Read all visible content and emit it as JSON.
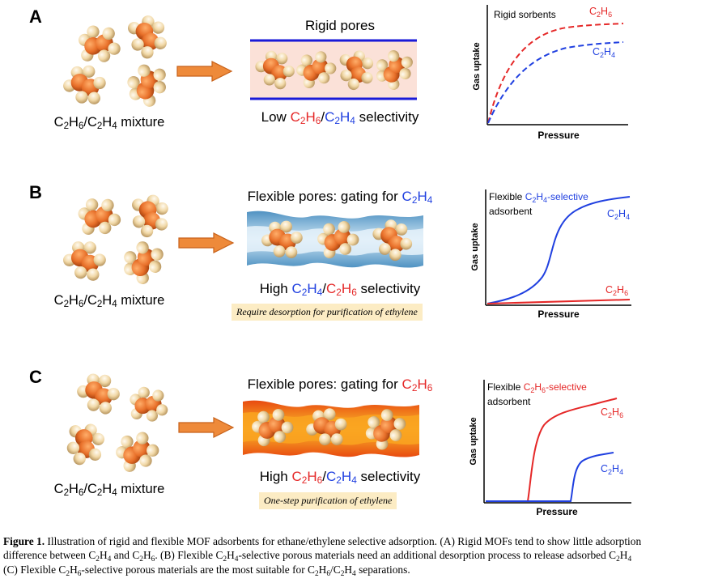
{
  "panels": [
    {
      "label": "A",
      "mixture": {
        "a": "C",
        "a_sub": "2",
        "b": "H",
        "b_sub": "6",
        "slash": "/",
        "c": "C",
        "c_sub": "2",
        "d": "H",
        "d_sub": "4",
        "tail": " mixture"
      },
      "title": "Rigid pores",
      "selectivity": {
        "pre": "Low ",
        "s1": "C",
        "s1a": "2",
        "s1b": "H",
        "s1c": "6",
        "mid": "/",
        "s2": "C",
        "s2a": "2",
        "s2b": "H",
        "s2c": "4",
        "post": " selectivity"
      },
      "plot": {
        "title_line1": "Rigid sorbents",
        "title_line2": "",
        "highlight": "",
        "xlabel": "Pressure",
        "ylabel": "Gas uptake",
        "series_top": "C2H6",
        "series_bottom": "C2H4"
      }
    },
    {
      "label": "B",
      "mixture": {
        "a": "C",
        "a_sub": "2",
        "b": "H",
        "b_sub": "6",
        "slash": "/",
        "c": "C",
        "c_sub": "2",
        "d": "H",
        "d_sub": "4",
        "tail": " mixture"
      },
      "title_pre": "Flexible pores: gating for ",
      "title_gas": {
        "a": "C",
        "a_sub": "2",
        "b": "H",
        "b_sub": "4"
      },
      "selectivity": {
        "pre": "High ",
        "s1": "C",
        "s1a": "2",
        "s1b": "H",
        "s1c": "4",
        "mid": "/",
        "s2": "C",
        "s2a": "2",
        "s2b": "H",
        "s2c": "6",
        "post": " selectivity"
      },
      "note": "Require desorption for purification of ethylene",
      "plot": {
        "title_line1": "Flexible ",
        "highlight": "C2H4-selective",
        "title_line2": "adsorbent",
        "xlabel": "Pressure",
        "ylabel": "Gas uptake",
        "series_top": "C2H4",
        "series_bottom": "C2H6"
      }
    },
    {
      "label": "C",
      "mixture": {
        "a": "C",
        "a_sub": "2",
        "b": "H",
        "b_sub": "6",
        "slash": "/",
        "c": "C",
        "c_sub": "2",
        "d": "H",
        "d_sub": "4",
        "tail": " mixture"
      },
      "title_pre": "Flexible pores: gating for ",
      "title_gas": {
        "a": "C",
        "a_sub": "2",
        "b": "H",
        "b_sub": "6"
      },
      "selectivity": {
        "pre": "High ",
        "s1": "C",
        "s1a": "2",
        "s1b": "H",
        "s1c": "6",
        "mid": "/",
        "s2": "C",
        "s2a": "2",
        "s2b": "H",
        "s2c": "4",
        "post": " selectivity"
      },
      "note": "One-step purification of ethylene",
      "plot": {
        "title_line1": "Flexible ",
        "highlight": "C2H6-selective",
        "title_line2": "adsorbent",
        "xlabel": "Pressure",
        "ylabel": "Gas uptake",
        "series_top": "C2H6",
        "series_bottom": "C2H4"
      }
    }
  ],
  "caption": {
    "fig": "Figure 1.",
    "l1": " Illustration of rigid and flexible MOF adsorbents for ethane/ethylene selective adsorption. (A) Rigid MOFs tend to show little adsorption",
    "l2a": "difference between C",
    "l2b": "2",
    "l2c": "H",
    "l2d": "4",
    "l2e": " and C",
    "l2f": "2",
    "l2g": "H",
    "l2h": "6",
    "l2i": ". (B) Flexible C",
    "l2j": "2",
    "l2k": "H",
    "l2l": "4",
    "l2m": "-selective porous materials need an additional desorption process to release adsorbed C",
    "l2n": "2",
    "l2o": "H",
    "l2p": "4",
    "l3a": "(C) Flexible C",
    "l3b": "2",
    "l3c": "H",
    "l3d": "6",
    "l3e": "-selective porous materials are the most suitable for C",
    "l3f": "2",
    "l3g": "H",
    "l3h": "6",
    "l3i": "/C",
    "l3j": "2",
    "l3k": "H",
    "l3l": "4",
    "l3m": " separations."
  },
  "colors": {
    "red": "#e52828",
    "blue": "#2040e0",
    "orange": "#e8702a",
    "cream": "#f3d9a8"
  }
}
